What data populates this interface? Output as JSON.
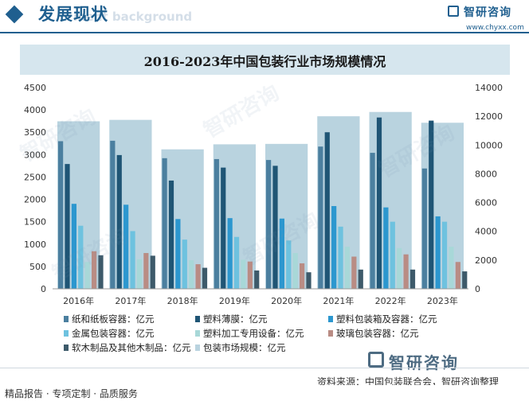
{
  "header": {
    "title": "发展现状",
    "subtitle": "ment background",
    "logo": "智研咨询",
    "url": "www.chyxx.com"
  },
  "footer": {
    "logo": "智研咨询",
    "source": "资料来源：中国包装联合会，智研咨询整理",
    "bottom_text": "精品报告 · 专项定制 · 品质服务"
  },
  "watermark": "智研咨询",
  "colors": {
    "brand": "#1f5f8f",
    "market_bar": "#b9d3df"
  },
  "chart_data": {
    "type": "bar",
    "title": "2016-2023年中国包装行业市场规模情况",
    "categories": [
      "2016年",
      "2017年",
      "2018年",
      "2019年",
      "2020年",
      "2021年",
      "2022年",
      "2023年"
    ],
    "y_left": {
      "min": 0,
      "max": 4500,
      "step": 500
    },
    "y_right": {
      "min": 0,
      "max": 14000,
      "step": 2000
    },
    "series": [
      {
        "name": "纸和纸板容器：亿元",
        "axis": "left",
        "color": "#4b7f9f",
        "values": [
          3300,
          3310,
          2920,
          2900,
          2880,
          3180,
          3040,
          2690
        ]
      },
      {
        "name": "塑料薄膜：亿元",
        "axis": "left",
        "color": "#1f5575",
        "values": [
          2790,
          2990,
          2420,
          2710,
          2750,
          3500,
          3830,
          3760
        ]
      },
      {
        "name": "塑料包装箱及容器：亿元",
        "axis": "left",
        "color": "#2c97cf",
        "values": [
          1900,
          1880,
          1560,
          1580,
          1570,
          1850,
          1820,
          1620
        ]
      },
      {
        "name": "金属包装容器：亿元",
        "axis": "left",
        "color": "#6ec2df",
        "values": [
          1410,
          1290,
          1100,
          1160,
          1080,
          1390,
          1500,
          1500
        ]
      },
      {
        "name": "塑料加工专用设备：亿元",
        "axis": "left",
        "color": "#a8d8d8",
        "values": [
          600,
          660,
          640,
          650,
          800,
          940,
          910,
          940
        ]
      },
      {
        "name": "玻璃包装容器：亿元",
        "axis": "left",
        "color": "#b98c84",
        "values": [
          840,
          800,
          550,
          610,
          570,
          720,
          770,
          600
        ]
      },
      {
        "name": "软木制品及其他木制品：亿元",
        "axis": "left",
        "color": "#3d5a6a",
        "values": [
          750,
          740,
          470,
          410,
          370,
          430,
          430,
          390
        ]
      },
      {
        "name": "包装市场规模：亿元",
        "axis": "right",
        "color": "#b9d3df",
        "values": [
          11650,
          11750,
          9700,
          10050,
          10080,
          12000,
          12300,
          11550
        ]
      }
    ],
    "legend_position": "bottom",
    "grid": false
  }
}
